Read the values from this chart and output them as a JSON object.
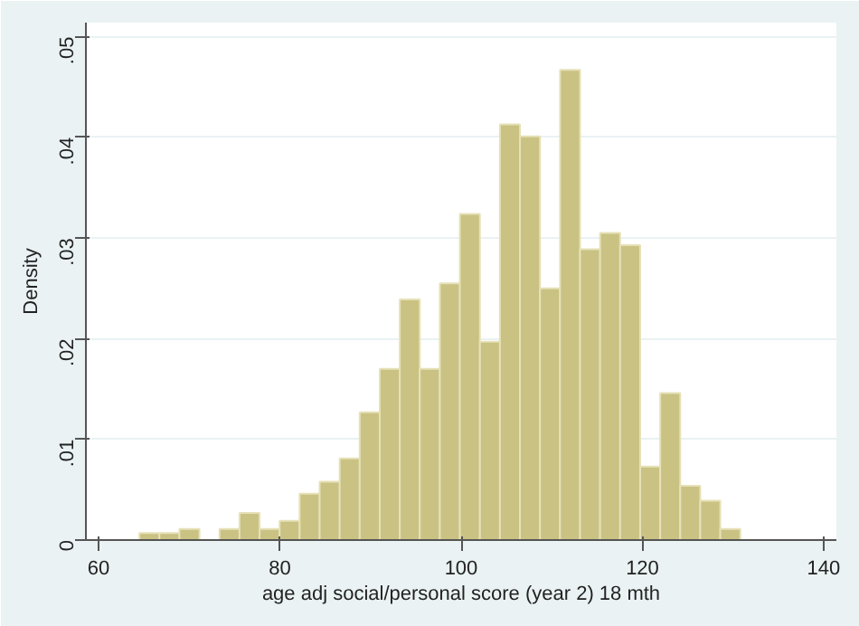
{
  "chart_data": {
    "type": "histogram",
    "xlabel": "age adj social/personal score (year 2) 18 mth",
    "ylabel": "Density",
    "bins": [
      64.5,
      66.71,
      68.92,
      71.13,
      73.34,
      75.55,
      77.76,
      79.97,
      82.18,
      84.39,
      86.6,
      88.81,
      91.02,
      93.23,
      95.44,
      97.65,
      99.86,
      102.07,
      104.28,
      106.49,
      108.7,
      110.91,
      113.12,
      115.33,
      117.54,
      119.75,
      121.96,
      124.17,
      126.38,
      128.59,
      130.8
    ],
    "values": [
      0.0007,
      0.0007,
      0.0011,
      0,
      0.0011,
      0.0027,
      0.0011,
      0.0019,
      0.0046,
      0.0058,
      0.0081,
      0.0127,
      0.017,
      0.0239,
      0.017,
      0.0255,
      0.0324,
      0.0197,
      0.0413,
      0.0401,
      0.025,
      0.0467,
      0.0289,
      0.0305,
      0.0293,
      0.0073,
      0.0146,
      0.0054,
      0.0039,
      0.0011
    ],
    "color": "#c9c283",
    "xlim": [
      58.6,
      141.4
    ],
    "ylim": [
      0,
      0.0514
    ],
    "xticks": [
      60,
      80,
      100,
      120,
      140
    ],
    "yticks": [
      0,
      {
        "value": 0.01,
        "label": ".01"
      },
      {
        "value": 0.02,
        "label": ".02"
      },
      {
        "value": 0.03,
        "label": ".03"
      },
      {
        "value": 0.04,
        "label": ".04"
      },
      {
        "value": 0.05,
        "label": ".05"
      }
    ],
    "grid": "y"
  }
}
